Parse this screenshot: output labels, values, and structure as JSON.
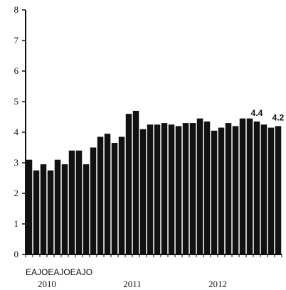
{
  "chart_data": {
    "type": "bar",
    "title": "",
    "xlabel": "",
    "ylabel": "",
    "ylim": [
      0,
      8
    ],
    "yticks": [
      "0",
      "1",
      "2",
      "3",
      "4",
      "5",
      "6",
      "7",
      "8"
    ],
    "grid": false,
    "legend": "none",
    "bar_color": "#111111",
    "categories": [
      "2010-01",
      "2010-02",
      "2010-03",
      "2010-04",
      "2010-05",
      "2010-06",
      "2010-07",
      "2010-08",
      "2010-09",
      "2010-10",
      "2010-11",
      "2010-12",
      "2011-01",
      "2011-02",
      "2011-03",
      "2011-04",
      "2011-05",
      "2011-06",
      "2011-07",
      "2011-08",
      "2011-09",
      "2011-10",
      "2011-11",
      "2011-12",
      "2012-01",
      "2012-02",
      "2012-03",
      "2012-04",
      "2012-05",
      "2012-06",
      "2012-07",
      "2012-08",
      "2012-09",
      "2012-10",
      "2012-11",
      "2012-12"
    ],
    "values": [
      3.1,
      2.75,
      2.95,
      2.75,
      3.1,
      2.95,
      3.4,
      3.4,
      2.95,
      3.5,
      3.85,
      3.95,
      3.65,
      3.85,
      4.6,
      4.7,
      4.1,
      4.25,
      4.25,
      4.3,
      4.25,
      4.2,
      4.3,
      4.3,
      4.45,
      4.35,
      4.05,
      4.15,
      4.3,
      4.2,
      4.45,
      4.45,
      4.35,
      4.25,
      4.15,
      4.2
    ],
    "month_tick_text": "EAJOEAJOEAJO",
    "year_labels": [
      "2010",
      "2011",
      "2012"
    ],
    "data_labels": [
      {
        "index": 32,
        "text": "4.4"
      },
      {
        "index": 35,
        "text": "4.2"
      }
    ]
  }
}
